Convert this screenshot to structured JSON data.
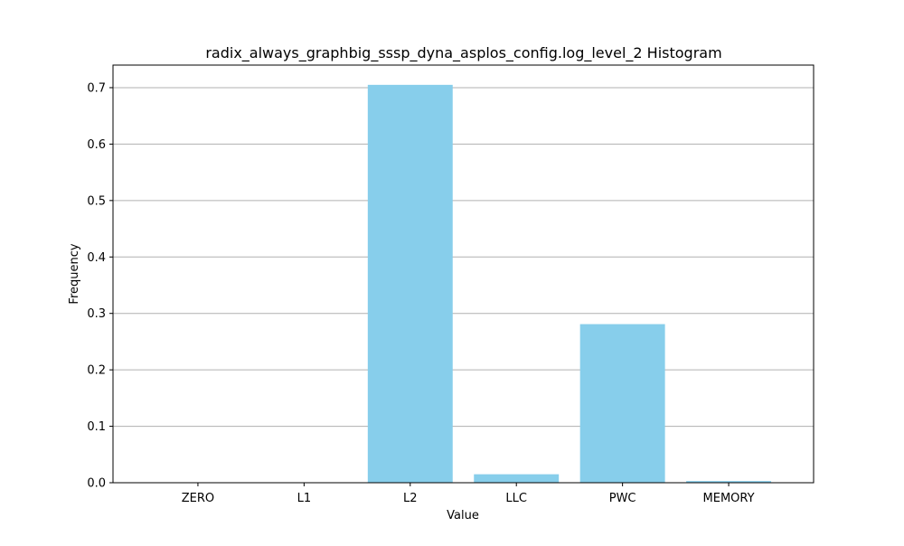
{
  "chart_data": {
    "type": "bar",
    "title": "radix_always_graphbig_sssp_dyna_asplos_config.log_level_2 Histogram",
    "xlabel": "Value",
    "ylabel": "Frequency",
    "categories": [
      "ZERO",
      "L1",
      "L2",
      "LLC",
      "PWC",
      "MEMORY"
    ],
    "values": [
      0.0,
      0.0,
      0.705,
      0.015,
      0.281,
      0.003
    ],
    "ylim": [
      0,
      0.74
    ],
    "yticks": [
      0.0,
      0.1,
      0.2,
      0.3,
      0.4,
      0.5,
      0.6,
      0.7
    ],
    "ytick_labels": [
      "0.0",
      "0.1",
      "0.2",
      "0.3",
      "0.4",
      "0.5",
      "0.6",
      "0.7"
    ],
    "grid": "y-axis",
    "bar_color": "#87ceeb",
    "grid_color": "#b0b0b0"
  }
}
